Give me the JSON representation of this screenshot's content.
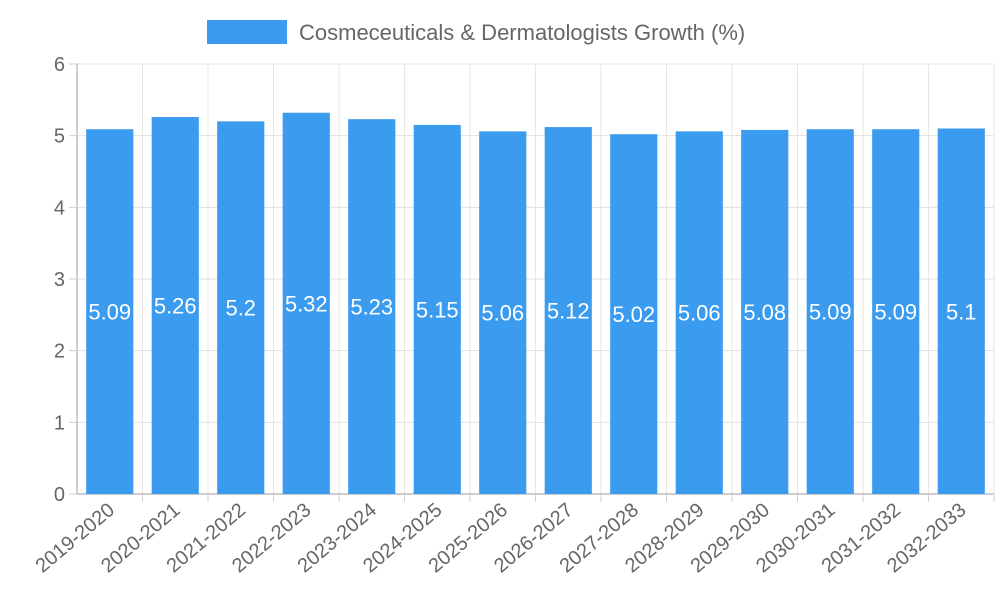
{
  "chart_data": {
    "type": "bar",
    "title": "",
    "xlabel": "",
    "ylabel": "",
    "ylim": [
      0,
      6
    ],
    "yticks": [
      0,
      1,
      2,
      3,
      4,
      5,
      6
    ],
    "grid": true,
    "legend_position": "top-center",
    "categories": [
      "2019-2020",
      "2020-2021",
      "2021-2022",
      "2022-2023",
      "2023-2024",
      "2024-2025",
      "2025-2026",
      "2026-2027",
      "2027-2028",
      "2028-2029",
      "2029-2030",
      "2030-2031",
      "2031-2032",
      "2032-2033"
    ],
    "series": [
      {
        "name": "Cosmeceuticals & Dermatologists Growth (%)",
        "color": "#3a9bef",
        "values": [
          5.09,
          5.26,
          5.2,
          5.32,
          5.23,
          5.15,
          5.06,
          5.12,
          5.02,
          5.06,
          5.08,
          5.09,
          5.09,
          5.1
        ],
        "labels": [
          "5.09",
          "5.26",
          "5.2",
          "5.32",
          "5.23",
          "5.15",
          "5.06",
          "5.12",
          "5.02",
          "5.06",
          "5.08",
          "5.09",
          "5.09",
          "5.1"
        ]
      }
    ]
  }
}
